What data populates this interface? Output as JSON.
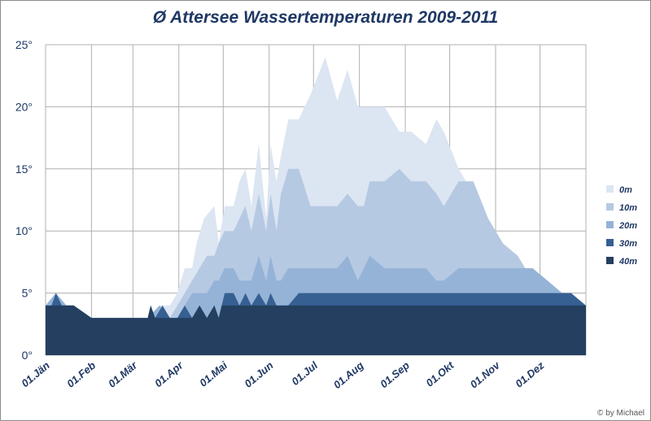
{
  "chart_data": {
    "type": "area",
    "title": "Ø Attersee Wassertemperaturen 2009-2011",
    "credit": "© by Michael",
    "xlabel": "",
    "ylabel": "",
    "ylim": [
      0,
      25
    ],
    "xlim": [
      1,
      366
    ],
    "grid": true,
    "legend_position": "right",
    "y_ticks": [
      "0°",
      "5°",
      "10°",
      "15°",
      "20°",
      "25°"
    ],
    "x_ticks": [
      {
        "label": "01.Jän",
        "day": 1
      },
      {
        "label": "01.Feb",
        "day": 32
      },
      {
        "label": "01.Mär",
        "day": 60
      },
      {
        "label": "01.Apr",
        "day": 91
      },
      {
        "label": "01.Mai",
        "day": 121
      },
      {
        "label": "01.Jun",
        "day": 152
      },
      {
        "label": "01.Jul",
        "day": 182
      },
      {
        "label": "01.Aug",
        "day": 213
      },
      {
        "label": "01.Sep",
        "day": 244
      },
      {
        "label": "01.Okt",
        "day": 274
      },
      {
        "label": "01.Nov",
        "day": 305
      },
      {
        "label": "01.Dez",
        "day": 335
      }
    ],
    "series": [
      {
        "name": "0m",
        "color": "#dce5f2",
        "x": [
          1,
          8,
          15,
          20,
          32,
          60,
          70,
          78,
          85,
          90,
          95,
          100,
          103,
          108,
          115,
          118,
          122,
          128,
          132,
          136,
          140,
          145,
          150,
          153,
          157,
          160,
          165,
          172,
          180,
          190,
          198,
          205,
          212,
          216,
          220,
          230,
          240,
          248,
          258,
          265,
          270,
          280,
          290,
          300,
          310,
          320,
          330,
          340,
          350,
          356,
          366
        ],
        "y": [
          4,
          5,
          4,
          4,
          3,
          3,
          3,
          4,
          4,
          5,
          7,
          7,
          9,
          11,
          12,
          9,
          12,
          12,
          14,
          15,
          12,
          17,
          11,
          17,
          14,
          16,
          19,
          19,
          21,
          24,
          20.5,
          23,
          20,
          20,
          20,
          20,
          18,
          18,
          17,
          19,
          18,
          15,
          13,
          11,
          9,
          7,
          5.5,
          5,
          5,
          4,
          4
        ]
      },
      {
        "name": "10m",
        "color": "#b6c9e2",
        "x": [
          1,
          8,
          15,
          20,
          32,
          60,
          70,
          78,
          85,
          90,
          95,
          100,
          105,
          110,
          115,
          118,
          122,
          128,
          132,
          136,
          140,
          145,
          150,
          153,
          157,
          160,
          165,
          172,
          180,
          190,
          198,
          205,
          212,
          216,
          220,
          230,
          240,
          248,
          258,
          265,
          270,
          280,
          290,
          300,
          310,
          320,
          330,
          340,
          350,
          356,
          366
        ],
        "y": [
          4,
          5,
          4,
          4,
          3,
          3,
          3,
          4,
          3,
          4,
          5,
          6,
          7,
          8,
          8,
          9,
          10,
          10,
          11,
          12,
          10,
          13,
          10,
          13,
          10,
          13,
          15,
          15,
          12,
          12,
          12,
          13,
          12,
          12,
          14,
          14,
          15,
          14,
          14,
          13,
          12,
          14,
          14,
          11,
          9,
          8,
          6,
          5,
          5,
          4,
          4
        ]
      },
      {
        "name": "20m",
        "color": "#95b3d7",
        "x": [
          1,
          8,
          15,
          20,
          32,
          60,
          70,
          78,
          85,
          90,
          95,
          100,
          105,
          110,
          115,
          118,
          122,
          128,
          132,
          136,
          140,
          145,
          150,
          153,
          157,
          160,
          165,
          172,
          180,
          190,
          198,
          205,
          212,
          216,
          220,
          230,
          240,
          248,
          258,
          265,
          270,
          280,
          290,
          300,
          310,
          320,
          330,
          340,
          350,
          356,
          366
        ],
        "y": [
          4,
          5,
          4,
          4,
          3,
          3,
          3,
          4,
          3,
          3,
          4,
          5,
          5,
          5,
          6,
          6,
          7,
          7,
          6,
          6,
          6,
          8,
          6,
          8,
          6,
          6,
          7,
          7,
          7,
          7,
          7,
          8,
          6,
          7,
          8,
          7,
          7,
          7,
          7,
          6,
          6,
          7,
          7,
          7,
          7,
          7,
          7,
          6,
          5,
          4,
          4
        ]
      },
      {
        "name": "30m",
        "color": "#366092",
        "x": [
          1,
          5,
          8,
          12,
          15,
          20,
          32,
          60,
          70,
          72,
          75,
          80,
          85,
          90,
          95,
          100,
          105,
          110,
          115,
          118,
          122,
          128,
          132,
          136,
          140,
          145,
          150,
          153,
          157,
          160,
          165,
          172,
          180,
          190,
          198,
          205,
          212,
          216,
          220,
          230,
          240,
          248,
          258,
          265,
          270,
          280,
          290,
          300,
          310,
          320,
          330,
          340,
          350,
          356,
          366
        ],
        "y": [
          4,
          4,
          5,
          4,
          4,
          4,
          3,
          3,
          3,
          4,
          3,
          4,
          3,
          3,
          4,
          3,
          4,
          3,
          4,
          3,
          5,
          5,
          4,
          5,
          4,
          5,
          4,
          5,
          4,
          4,
          4,
          5,
          5,
          5,
          5,
          5,
          5,
          5,
          5,
          5,
          5,
          5,
          5,
          5,
          5,
          5,
          5,
          5,
          5,
          5,
          5,
          5,
          5,
          5,
          4
        ]
      },
      {
        "name": "40m",
        "color": "#243f60",
        "x": [
          1,
          20,
          32,
          60,
          70,
          72,
          75,
          80,
          85,
          90,
          95,
          100,
          105,
          110,
          115,
          118,
          120,
          125,
          130,
          135,
          140,
          366
        ],
        "y": [
          4,
          4,
          3,
          3,
          3,
          4,
          3,
          3,
          3,
          3,
          3,
          3,
          4,
          3,
          4,
          3,
          4,
          4,
          4,
          4,
          4,
          4
        ]
      }
    ]
  }
}
